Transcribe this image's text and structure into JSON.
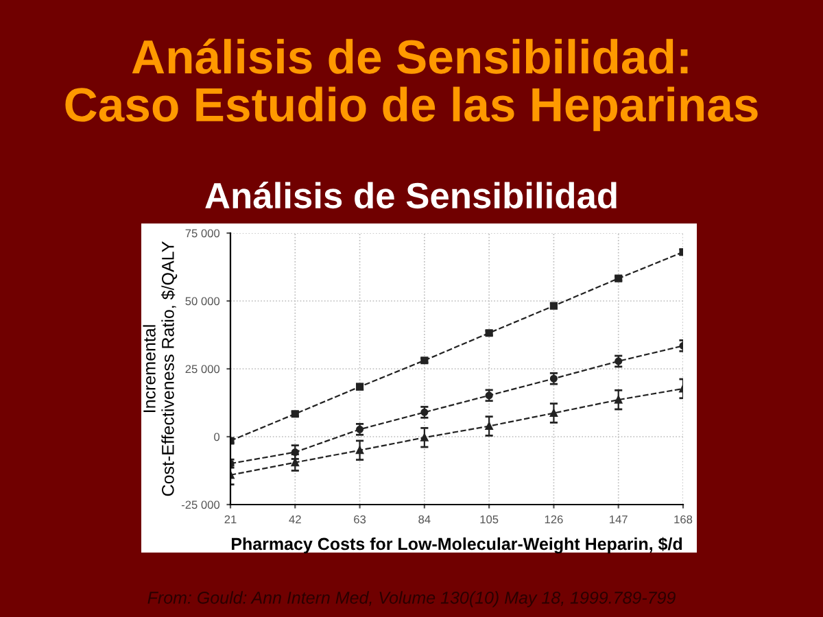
{
  "chart_data": {
    "type": "line",
    "title": "Análisis de Sensibilidad:\nCaso Estudio de las Heparinas",
    "subtitle": "Análisis de Sensibilidad",
    "xlabel": "Pharmacy Costs for Low-Molecular-Weight Heparin, $/d",
    "ylabel": "Incremental\nCost-Effectiveness Ratio, $/QALY",
    "x": [
      21,
      42,
      63,
      84,
      105,
      126,
      147,
      168
    ],
    "series": [
      {
        "color": "#222222",
        "marker": "square",
        "values": [
          -1500,
          8400,
          18400,
          28100,
          38200,
          48200,
          58300,
          68000
        ],
        "errors": [
          800,
          800,
          1000,
          800,
          800,
          800,
          800,
          1000
        ]
      },
      {
        "color": "#222222",
        "marker": "circle",
        "values": [
          -9900,
          -5700,
          2700,
          9000,
          15200,
          21400,
          27800,
          33500
        ],
        "errors": [
          1500,
          2500,
          2000,
          2000,
          2000,
          2000,
          2000,
          2000
        ]
      },
      {
        "color": "#222222",
        "marker": "triangle",
        "values": [
          -14100,
          -9500,
          -5000,
          -300,
          3900,
          8700,
          13600,
          17700
        ],
        "errors": [
          3500,
          3000,
          3500,
          3500,
          3500,
          3500,
          3500,
          3500
        ]
      }
    ],
    "xlim": [
      21,
      168
    ],
    "xticks": [
      21,
      42,
      63,
      84,
      105,
      126,
      147,
      168
    ],
    "ylim": [
      -25000,
      75000
    ],
    "yticks": [
      {
        "value": -25000,
        "label": "-25 000"
      },
      0,
      {
        "value": 25000,
        "label": "25 000"
      },
      {
        "value": 50000,
        "label": "50 000"
      },
      {
        "value": 75000,
        "label": "75 000"
      }
    ],
    "grid": true,
    "line_style": "dashed",
    "annotations": [
      "From: Gould: Ann Intern Med, Volume 130(10) May 18, 1999.789-799"
    ]
  }
}
